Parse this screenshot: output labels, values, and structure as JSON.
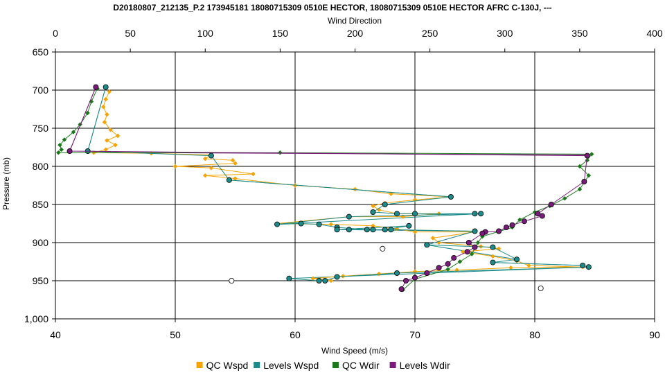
{
  "chart_data": {
    "type": "scatter",
    "title": "D20180807_212135_P.2 173945181 18080715309 0510E HECTOR, 18080715309 0510E HECTOR AFRC C-130J, ---",
    "xlabel_bottom": "Wind Speed (m/s)",
    "xlabel_top": "Wind Direction",
    "ylabel": "Pressure (mb)",
    "x_bottom_range": [
      40,
      90
    ],
    "x_bottom_ticks": [
      "40",
      "50",
      "60",
      "70",
      "80",
      "90"
    ],
    "x_top_range": [
      0,
      400
    ],
    "x_top_ticks": [
      "0",
      "50",
      "100",
      "150",
      "200",
      "250",
      "300",
      "350",
      "400"
    ],
    "y_range": [
      650,
      1000
    ],
    "y_inverted": true,
    "y_ticks": [
      "650",
      "700",
      "750",
      "800",
      "850",
      "900",
      "950",
      "1,000"
    ],
    "grid": true,
    "legend_position": "bottom",
    "series": [
      {
        "name": "QC Wspd",
        "axis": "bottom",
        "color": "#f5a300",
        "marker": "diamond",
        "points": [
          [
            44.5,
            702
          ],
          [
            44.2,
            712
          ],
          [
            44.0,
            722
          ],
          [
            44.3,
            732
          ],
          [
            44.1,
            742
          ],
          [
            44.6,
            752
          ],
          [
            45.2,
            760
          ],
          [
            44.3,
            766
          ],
          [
            45.0,
            772
          ],
          [
            44.2,
            778
          ],
          [
            43.2,
            782
          ],
          [
            48.0,
            783
          ],
          [
            53.0,
            785
          ],
          [
            52.5,
            790
          ],
          [
            54.8,
            792
          ],
          [
            55.0,
            796
          ],
          [
            50.0,
            800
          ],
          [
            53.0,
            802
          ],
          [
            56.5,
            810
          ],
          [
            52.5,
            812
          ],
          [
            55.0,
            816
          ],
          [
            60.0,
            825
          ],
          [
            65.0,
            830
          ],
          [
            68.0,
            836
          ],
          [
            73.0,
            840
          ],
          [
            70.0,
            844
          ],
          [
            67.5,
            848
          ],
          [
            66.5,
            852
          ],
          [
            67.0,
            857
          ],
          [
            68.5,
            862
          ],
          [
            72.0,
            862
          ],
          [
            69.0,
            866
          ],
          [
            64.5,
            866
          ],
          [
            58.5,
            875
          ],
          [
            63.0,
            876
          ],
          [
            66.5,
            878
          ],
          [
            68.5,
            882
          ],
          [
            70.0,
            886
          ],
          [
            75.0,
            886
          ],
          [
            71.5,
            894
          ],
          [
            72.0,
            900
          ],
          [
            75.5,
            905
          ],
          [
            77.0,
            908
          ],
          [
            74.0,
            912
          ],
          [
            76.5,
            918
          ],
          [
            78.5,
            924
          ],
          [
            79.5,
            930
          ],
          [
            84.0,
            932
          ],
          [
            78.0,
            933
          ],
          [
            73.5,
            936
          ],
          [
            70.0,
            938
          ],
          [
            67.0,
            941
          ],
          [
            64.0,
            944
          ],
          [
            61.5,
            947
          ],
          [
            63.0,
            950
          ]
        ]
      },
      {
        "name": "Levels Wspd",
        "axis": "bottom",
        "color": "#1a8a8a",
        "marker": "circle",
        "points": [
          [
            44.2,
            696
          ],
          [
            42.7,
            780
          ],
          [
            53.0,
            786
          ],
          [
            54.5,
            818
          ],
          [
            73.0,
            840
          ],
          [
            67.5,
            850
          ],
          [
            66.5,
            860
          ],
          [
            68.5,
            862
          ],
          [
            70.0,
            862
          ],
          [
            75.0,
            862
          ],
          [
            75.5,
            862
          ],
          [
            64.5,
            866
          ],
          [
            58.5,
            876
          ],
          [
            60.5,
            875
          ],
          [
            62.0,
            876
          ],
          [
            63.5,
            880
          ],
          [
            66.0,
            883
          ],
          [
            67.5,
            883
          ],
          [
            69.5,
            878
          ],
          [
            63.5,
            883
          ],
          [
            64.5,
            883
          ],
          [
            66.5,
            883
          ],
          [
            68.0,
            883
          ],
          [
            75.0,
            885
          ],
          [
            71.0,
            903
          ],
          [
            76.5,
            906
          ],
          [
            78.5,
            922
          ],
          [
            76.5,
            926
          ],
          [
            84.0,
            930
          ],
          [
            84.5,
            932
          ],
          [
            68.5,
            940
          ],
          [
            63.5,
            945
          ],
          [
            62.5,
            950
          ],
          [
            62.0,
            950
          ],
          [
            59.5,
            947
          ]
        ]
      },
      {
        "name": "QC Wdir",
        "axis": "top",
        "color": "#1a7a1a",
        "marker": "diamond",
        "points": [
          [
            28.0,
            698
          ],
          [
            24.0,
            715
          ],
          [
            21.5,
            730
          ],
          [
            16.5,
            745
          ],
          [
            12.0,
            755
          ],
          [
            6.0,
            765
          ],
          [
            3.0,
            772
          ],
          [
            4.0,
            778
          ],
          [
            2.0,
            782
          ],
          [
            150.0,
            782
          ],
          [
            358.0,
            784
          ],
          [
            355.0,
            792
          ],
          [
            350.0,
            800
          ],
          [
            356.0,
            812
          ],
          [
            350.0,
            830
          ],
          [
            340.0,
            842
          ],
          [
            330.0,
            852
          ],
          [
            320.0,
            860
          ],
          [
            310.0,
            870
          ],
          [
            305.0,
            880
          ],
          [
            285.0,
            892
          ],
          [
            282.0,
            900
          ],
          [
            278.0,
            915
          ],
          [
            270.0,
            925
          ],
          [
            262.0,
            935
          ],
          [
            240.0,
            948
          ],
          [
            232.0,
            962
          ]
        ]
      },
      {
        "name": "Levels Wdir",
        "axis": "top",
        "color": "#7a1a7a",
        "marker": "circle",
        "points": [
          [
            27.0,
            696
          ],
          [
            9.5,
            780
          ],
          [
            355.0,
            786
          ],
          [
            353.0,
            820
          ],
          [
            331.0,
            850
          ],
          [
            322.0,
            862
          ],
          [
            325.0,
            865
          ],
          [
            313.0,
            872
          ],
          [
            305.0,
            877
          ],
          [
            301.0,
            880
          ],
          [
            296.0,
            885
          ],
          [
            287.0,
            886
          ],
          [
            285.0,
            888
          ],
          [
            276.0,
            900
          ],
          [
            280.0,
            906
          ],
          [
            275.0,
            912
          ],
          [
            266.0,
            920
          ],
          [
            262.0,
            928
          ],
          [
            256.0,
            933
          ],
          [
            248.0,
            940
          ],
          [
            240.0,
            946
          ],
          [
            234.0,
            950
          ],
          [
            231.0,
            961
          ]
        ]
      },
      {
        "name": "",
        "axis": "bottom",
        "color": "#000000",
        "marker": "hollow-circle",
        "points": [
          [
            67.3,
            908
          ],
          [
            54.7,
            950
          ],
          [
            80.5,
            960
          ]
        ]
      }
    ],
    "connectors": [
      {
        "axis": "bottom",
        "color": "#1a8a8a",
        "points": [
          [
            44.2,
            696
          ],
          [
            42.7,
            780
          ]
        ]
      },
      {
        "axis": "top",
        "color": "#7a1a7a",
        "points": [
          [
            27.0,
            696
          ],
          [
            9.5,
            780
          ]
        ]
      },
      {
        "axis": "bottom",
        "color": "#7a1a7a",
        "points": [
          [
            46.5,
            782
          ],
          [
            84.3,
            785
          ]
        ]
      },
      {
        "axis": "bottom",
        "color": "#1a8a8a",
        "points": [
          [
            54.5,
            818
          ],
          [
            73.0,
            840
          ]
        ]
      },
      {
        "axis": "bottom",
        "color": "#1a8a8a",
        "points": [
          [
            58.5,
            876
          ],
          [
            75.5,
            862
          ]
        ]
      },
      {
        "axis": "bottom",
        "color": "#1a8a8a",
        "points": [
          [
            63.5,
            883
          ],
          [
            75.0,
            885
          ]
        ]
      },
      {
        "axis": "bottom",
        "color": "#1a8a8a",
        "points": [
          [
            71.0,
            903
          ],
          [
            78.5,
            922
          ]
        ]
      },
      {
        "axis": "bottom",
        "color": "#1a8a8a",
        "points": [
          [
            76.5,
            926
          ],
          [
            84.0,
            930
          ]
        ]
      },
      {
        "axis": "bottom",
        "color": "#1a8a8a",
        "points": [
          [
            84.5,
            932
          ],
          [
            59.5,
            947
          ]
        ]
      }
    ]
  }
}
